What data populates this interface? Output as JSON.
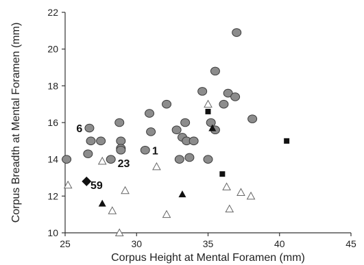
{
  "chart_data": {
    "type": "scatter",
    "title": "",
    "xlabel": "Corpus Height at Mental Foramen (mm)",
    "ylabel": "Corpus Breadth at Mental Foramen (mm)",
    "xlim": [
      25,
      45
    ],
    "ylim": [
      10,
      22
    ],
    "xticks": [
      "25",
      "30",
      "35",
      "40",
      "45"
    ],
    "yticks": [
      "10",
      "12",
      "14",
      "16",
      "18",
      "20",
      "22"
    ],
    "grid": false,
    "series": [
      {
        "marker": "circle",
        "color": "#8c8c8c",
        "points": [
          [
            25.1,
            14.0
          ],
          [
            26.7,
            15.7
          ],
          [
            26.8,
            15.0
          ],
          [
            26.6,
            14.3
          ],
          [
            27.5,
            15.0
          ],
          [
            28.2,
            14.0
          ],
          [
            28.8,
            16.0
          ],
          [
            28.9,
            15.0
          ],
          [
            28.9,
            14.6
          ],
          [
            28.9,
            14.5
          ],
          [
            30.6,
            14.5
          ],
          [
            30.9,
            16.5
          ],
          [
            31.0,
            15.5
          ],
          [
            32.1,
            17.0
          ],
          [
            32.8,
            15.6
          ],
          [
            33.0,
            14.0
          ],
          [
            33.2,
            15.2
          ],
          [
            33.4,
            16.0
          ],
          [
            33.5,
            15.0
          ],
          [
            33.7,
            14.1
          ],
          [
            34.0,
            15.0
          ],
          [
            34.6,
            17.7
          ],
          [
            35.0,
            14.0
          ],
          [
            35.2,
            16.0
          ],
          [
            35.5,
            18.8
          ],
          [
            35.5,
            15.6
          ],
          [
            36.1,
            17.0
          ],
          [
            36.4,
            17.6
          ],
          [
            36.9,
            17.4
          ],
          [
            37.0,
            20.9
          ],
          [
            38.1,
            16.2
          ]
        ]
      },
      {
        "marker": "triangle-open",
        "color": "#ffffff",
        "points": [
          [
            25.2,
            12.6
          ],
          [
            27.6,
            13.9
          ],
          [
            28.3,
            11.2
          ],
          [
            28.8,
            10.0
          ],
          [
            29.2,
            12.3
          ],
          [
            31.4,
            13.6
          ],
          [
            32.1,
            11.0
          ],
          [
            35.0,
            17.0
          ],
          [
            36.3,
            12.5
          ],
          [
            36.5,
            11.3
          ],
          [
            37.3,
            12.2
          ],
          [
            38.0,
            12.0
          ]
        ]
      },
      {
        "marker": "triangle-filled",
        "color": "#111111",
        "points": [
          [
            27.6,
            11.6
          ],
          [
            33.2,
            12.1
          ],
          [
            35.3,
            15.7
          ]
        ]
      },
      {
        "marker": "square",
        "color": "#111111",
        "points": [
          [
            35.0,
            16.6
          ],
          [
            36.0,
            13.2
          ],
          [
            40.5,
            15.0
          ]
        ]
      },
      {
        "marker": "diamond",
        "color": "#111111",
        "points": [
          [
            26.5,
            12.8
          ]
        ]
      }
    ],
    "annotations": [
      {
        "text": "6",
        "x": 26.0,
        "y": 15.7
      },
      {
        "text": "1",
        "x": 31.3,
        "y": 14.5
      },
      {
        "text": "23",
        "x": 29.1,
        "y": 13.8
      },
      {
        "text": "59",
        "x": 27.2,
        "y": 12.6
      }
    ]
  }
}
